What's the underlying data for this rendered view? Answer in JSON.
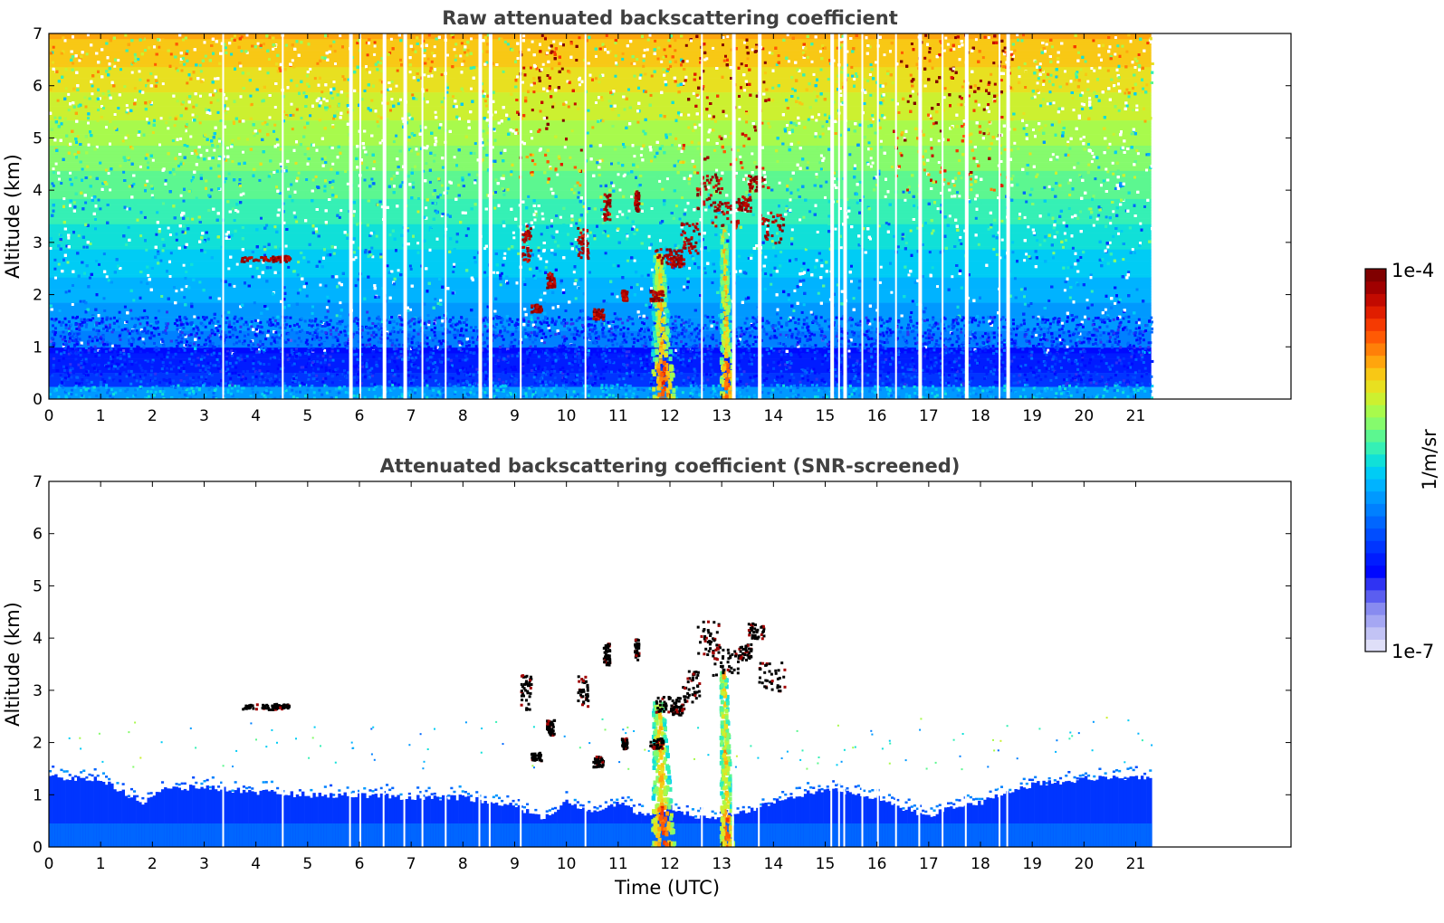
{
  "chart_data": [
    {
      "type": "heatmap",
      "title": "Raw attenuated backscattering coefficient",
      "xlabel": "",
      "ylabel": "Altitude (km)",
      "xlim": [
        0,
        24
      ],
      "ylim": [
        0,
        7
      ],
      "xticks": [
        "0",
        "1",
        "2",
        "3",
        "4",
        "5",
        "6",
        "7",
        "8",
        "9",
        "10",
        "11",
        "12",
        "13",
        "14",
        "15",
        "16",
        "17",
        "18",
        "19",
        "20",
        "21"
      ],
      "yticks": [
        "0",
        "1",
        "2",
        "3",
        "4",
        "5",
        "6",
        "7"
      ],
      "data_end_hour": 21.3,
      "gap_hours": [
        3.35,
        4.5,
        5.8,
        6.0,
        6.45,
        6.85,
        7.2,
        7.65,
        8.3,
        8.5,
        9.1,
        10.35,
        12.6,
        13.2,
        13.7,
        15.1,
        15.25,
        15.35,
        15.7,
        16.0,
        16.35,
        16.8,
        17.25,
        17.7,
        18.35,
        18.5
      ],
      "features": [
        {
          "name": "boundary-layer aerosol",
          "x_range": [
            0,
            21.3
          ],
          "top_km": 0.9
        },
        {
          "name": "dense aerosol plume",
          "x_range": [
            11.6,
            12.1
          ],
          "alt_range": [
            0,
            2.8
          ]
        },
        {
          "name": "dense aerosol plume",
          "x_range": [
            12.95,
            13.2
          ],
          "alt_range": [
            0,
            3.5
          ]
        },
        {
          "name": "thin cloud",
          "x_range": [
            3.7,
            4.6
          ],
          "alt_km": 2.7
        },
        {
          "name": "cloud fragments",
          "x_range": [
            9.0,
            14.0
          ],
          "alt_range": [
            1.6,
            4.2
          ]
        }
      ],
      "noise_high_region": [
        [
          9.0,
          10.3
        ],
        [
          12.2,
          13.9
        ],
        [
          16.3,
          18.6
        ]
      ]
    },
    {
      "type": "heatmap",
      "title": "Attenuated backscattering coefficient (SNR-screened)",
      "xlabel": "Time (UTC)",
      "ylabel": "Altitude (km)",
      "xlim": [
        0,
        24
      ],
      "ylim": [
        0,
        7
      ],
      "xticks": [
        "0",
        "1",
        "2",
        "3",
        "4",
        "5",
        "6",
        "7",
        "8",
        "9",
        "10",
        "11",
        "12",
        "13",
        "14",
        "15",
        "16",
        "17",
        "18",
        "19",
        "20",
        "21"
      ],
      "yticks": [
        "0",
        "1",
        "2",
        "3",
        "4",
        "5",
        "6",
        "7"
      ],
      "data_end_hour": 21.3,
      "screened_top_km": [
        [
          0,
          1.35
        ],
        [
          1,
          1.3
        ],
        [
          1.8,
          0.85
        ],
        [
          2.2,
          1.1
        ],
        [
          3,
          1.15
        ],
        [
          4,
          1.05
        ],
        [
          5,
          1.0
        ],
        [
          6,
          1.0
        ],
        [
          7,
          0.95
        ],
        [
          8,
          0.95
        ],
        [
          9,
          0.8
        ],
        [
          9.5,
          0.55
        ],
        [
          10,
          0.85
        ],
        [
          10.5,
          0.7
        ],
        [
          11,
          0.85
        ],
        [
          11.5,
          0.6
        ],
        [
          12,
          0.75
        ],
        [
          12.5,
          0.6
        ],
        [
          13,
          0.55
        ],
        [
          13.5,
          0.7
        ],
        [
          14,
          0.85
        ],
        [
          14.5,
          1.0
        ],
        [
          15,
          1.1
        ],
        [
          16,
          0.95
        ],
        [
          16.5,
          0.75
        ],
        [
          17,
          0.6
        ],
        [
          17.5,
          0.75
        ],
        [
          18,
          0.85
        ],
        [
          18.5,
          1.05
        ],
        [
          19,
          1.2
        ],
        [
          20,
          1.3
        ],
        [
          21.3,
          1.35
        ]
      ]
    }
  ],
  "colorbar": {
    "max_label": "1e-4",
    "min_label": "1e-7",
    "unit_label": "1/m/sr",
    "colors": [
      "#dfdff8",
      "#c2c3f5",
      "#a5a7f3",
      "#888bf0",
      "#5b5ef0",
      "#2f33f3",
      "#0008ff",
      "#001cff",
      "#0035ff",
      "#004dff",
      "#0066ff",
      "#0080ff",
      "#0099ff",
      "#00b3ff",
      "#00ccf5",
      "#10e0d8",
      "#35f0b5",
      "#5cf790",
      "#85fb6d",
      "#a8fa4c",
      "#ccf030",
      "#e8e020",
      "#f8c815",
      "#ffa50d",
      "#ff8008",
      "#ff5a04",
      "#f53a02",
      "#e01e00",
      "#c20a00",
      "#a00000",
      "#800000"
    ]
  }
}
